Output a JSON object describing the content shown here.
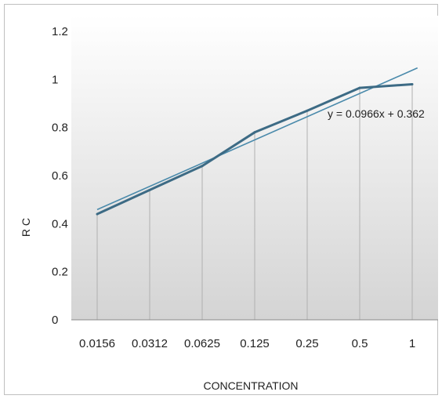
{
  "chart_data": {
    "type": "line",
    "categories": [
      "0.0156",
      "0.0312",
      "0.0625",
      "0.125",
      "0.25",
      "0.5",
      "1"
    ],
    "series": [
      {
        "values": [
          0.44,
          0.54,
          0.64,
          0.78,
          0.87,
          0.965,
          0.98
        ]
      }
    ],
    "trendline": {
      "slope": 0.0966,
      "intercept": 0.362,
      "label": "y = 0.0966x + 0.362"
    },
    "xlabel": "CONCENTRATION",
    "ylabel": "R C",
    "ylim": [
      0,
      1.2
    ],
    "yticks": [
      "0",
      "0.2",
      "0.4",
      "0.6",
      "0.8",
      "1",
      "1.2"
    ],
    "grid": "vertical",
    "legend": "none",
    "colors": {
      "series": "#3d6b85",
      "trendline": "#4a8aab",
      "grid": "#b0b0b0",
      "bg_top": "#ffffff",
      "bg_bottom": "#d4d4d4"
    }
  }
}
